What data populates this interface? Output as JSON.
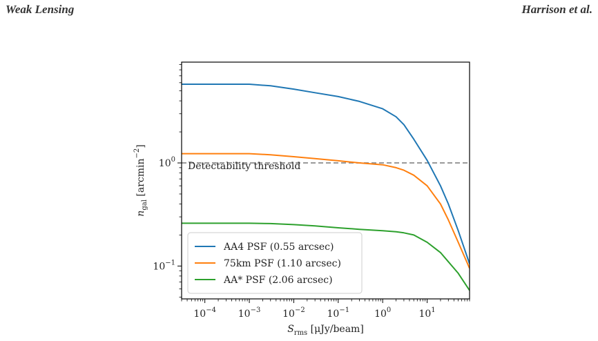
{
  "header": {
    "left": "Weak Lensing",
    "right": "Harrison et al."
  },
  "threshold_label": "Detectability threshold",
  "chart_data": {
    "type": "line",
    "xlabel": "S_rms [μJy/beam]",
    "ylabel": "n_gal [arcmin^-2]",
    "xscale": "log",
    "yscale": "log",
    "xlim": [
      3e-05,
      90
    ],
    "ylim": [
      0.048,
      9.5
    ],
    "x_ticks": [
      "10^-4",
      "10^-3",
      "10^-2",
      "10^-1",
      "10^0",
      "10^1"
    ],
    "y_ticks": [
      "10^-1",
      "10^0"
    ],
    "legend_position": "lower-left",
    "threshold": {
      "y": 1.0,
      "style": "dashed",
      "color": "#999999"
    },
    "series": [
      {
        "name": "AA4 PSF (0.55 arcsec)",
        "color": "#1f77b4",
        "x": [
          3e-05,
          0.001,
          0.003,
          0.01,
          0.03,
          0.1,
          0.3,
          1,
          2,
          3,
          5,
          10,
          20,
          30,
          50,
          90
        ],
        "y": [
          5.8,
          5.8,
          5.6,
          5.2,
          4.8,
          4.4,
          3.95,
          3.35,
          2.8,
          2.35,
          1.7,
          1.06,
          0.6,
          0.4,
          0.22,
          0.105
        ]
      },
      {
        "name": "75km PSF (1.10 arcsec)",
        "color": "#ff7f0e",
        "x": [
          3e-05,
          0.001,
          0.003,
          0.01,
          0.03,
          0.1,
          0.3,
          1,
          2,
          3,
          5,
          10,
          20,
          30,
          50,
          90
        ],
        "y": [
          1.23,
          1.23,
          1.2,
          1.15,
          1.1,
          1.05,
          1.0,
          0.96,
          0.9,
          0.85,
          0.76,
          0.6,
          0.4,
          0.28,
          0.17,
          0.095
        ]
      },
      {
        "name": "AA* PSF (2.06 arcsec)",
        "color": "#2ca02c",
        "x": [
          3e-05,
          0.001,
          0.003,
          0.01,
          0.03,
          0.1,
          0.3,
          1,
          2,
          3,
          5,
          10,
          20,
          30,
          50,
          90
        ],
        "y": [
          0.26,
          0.26,
          0.258,
          0.252,
          0.245,
          0.235,
          0.227,
          0.22,
          0.215,
          0.21,
          0.2,
          0.17,
          0.135,
          0.11,
          0.085,
          0.058
        ]
      }
    ]
  }
}
